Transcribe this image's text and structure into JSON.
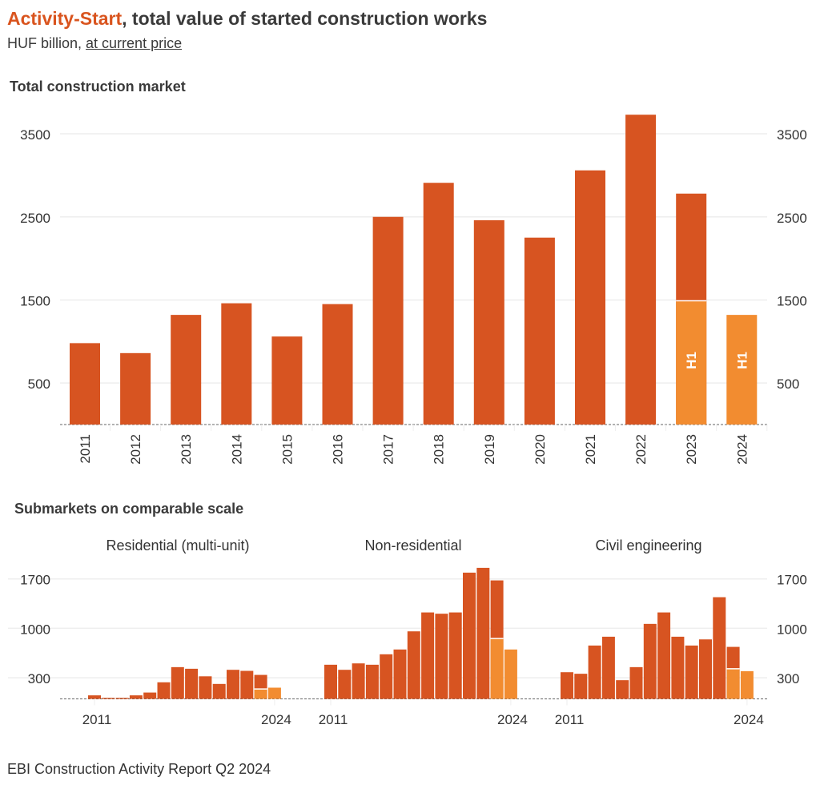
{
  "header": {
    "title_accent": "Activity-Start",
    "title_rest": ", total value of started construction works",
    "subtitle_plain": "HUF billion, ",
    "subtitle_link": "at current price"
  },
  "colors": {
    "bar": "#d75421",
    "h1": "#f28c30",
    "grid": "#eeeeee"
  },
  "footer": "EBI Construction Activity Report Q2 2024",
  "chart_data": [
    {
      "type": "bar",
      "title": "Total construction market",
      "categories": [
        "2011",
        "2012",
        "2013",
        "2014",
        "2015",
        "2016",
        "2017",
        "2018",
        "2019",
        "2020",
        "2021",
        "2022",
        "2023",
        "2024"
      ],
      "values": [
        980,
        860,
        1320,
        1460,
        1060,
        1450,
        2500,
        2910,
        2460,
        2250,
        3060,
        3730,
        2780,
        null
      ],
      "h1_values": [
        null,
        null,
        null,
        null,
        null,
        null,
        null,
        null,
        null,
        null,
        null,
        null,
        1490,
        1320
      ],
      "h1_label": "H1",
      "yticks": [
        500,
        1500,
        2500,
        3500
      ],
      "ylim": [
        0,
        3800
      ],
      "grid": true
    },
    {
      "type": "bar",
      "title": "Submarkets on comparable scale",
      "yticks": [
        300,
        1000,
        1700
      ],
      "ylim": [
        0,
        1900
      ],
      "grid": true,
      "categories": [
        "2011",
        "2012",
        "2013",
        "2014",
        "2015",
        "2016",
        "2017",
        "2018",
        "2019",
        "2020",
        "2021",
        "2022",
        "2023",
        "2024"
      ],
      "x_tick_labels": [
        "2011",
        "2024"
      ],
      "panels": [
        {
          "name": "Residential (multi-unit)",
          "values": [
            50,
            15,
            15,
            50,
            90,
            235,
            450,
            427,
            320,
            212,
            412,
            397,
            340,
            null
          ],
          "h1_values": [
            null,
            null,
            null,
            null,
            null,
            null,
            null,
            null,
            null,
            null,
            null,
            null,
            140,
            159
          ]
        },
        {
          "name": "Non-residential",
          "values": [
            484,
            412,
            503,
            484,
            632,
            700,
            957,
            1225,
            1207,
            1225,
            1789,
            1857,
            1679,
            null
          ],
          "h1_values": [
            null,
            null,
            null,
            null,
            null,
            null,
            null,
            null,
            null,
            null,
            null,
            null,
            855,
            700
          ]
        },
        {
          "name": "Civil engineering",
          "values": [
            378,
            356,
            756,
            881,
            265,
            450,
            1063,
            1225,
            881,
            756,
            843,
            1441,
            737,
            null
          ],
          "h1_values": [
            null,
            null,
            null,
            null,
            null,
            null,
            null,
            null,
            null,
            null,
            null,
            null,
            427,
            393
          ]
        }
      ]
    }
  ]
}
